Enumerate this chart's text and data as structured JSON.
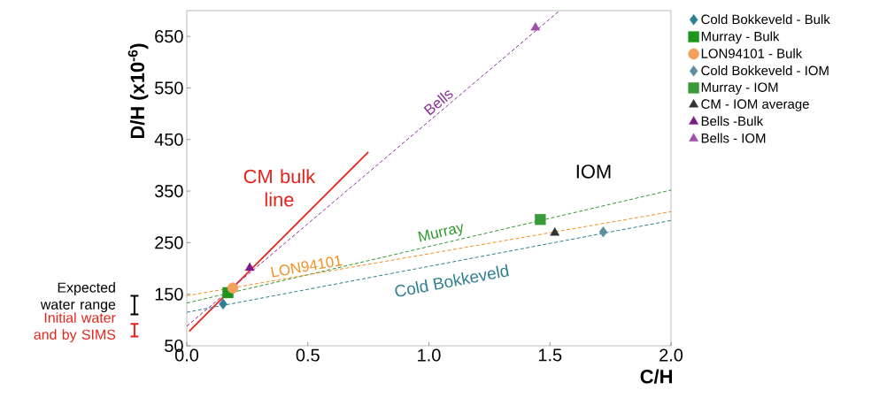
{
  "chart_data": {
    "type": "scatter",
    "xlabel": "C/H",
    "ylabel": "D/H (x10$^{-6}$)",
    "xlim": [
      0,
      2
    ],
    "ylim": [
      50,
      700
    ],
    "xticks": [
      {
        "value": 0,
        "label": "0.0"
      },
      {
        "value": 0.5,
        "label": "0.5"
      },
      {
        "value": 1,
        "label": "1.0"
      },
      {
        "value": 1.5,
        "label": "1.5"
      },
      {
        "value": 2,
        "label": "2.0"
      }
    ],
    "yticks": [
      50,
      150,
      250,
      350,
      450,
      550,
      650
    ],
    "grid": false,
    "legend": "right",
    "series": [
      {
        "name": "Cold Bokkeveld - Bulk",
        "color": "#2f7f95",
        "marker": "diamond",
        "x": [
          0.15
        ],
        "values": [
          131
        ]
      },
      {
        "name": "Murray - Bulk",
        "color": "#1e961e",
        "marker": "square",
        "x": [
          0.17
        ],
        "values": [
          153
        ]
      },
      {
        "name": "LON94101 - Bulk",
        "color": "#f2a05a",
        "marker": "circle",
        "x": [
          0.19
        ],
        "values": [
          162
        ]
      },
      {
        "name": "Cold Bokkeveld - IOM",
        "color": "#5e8fa0",
        "marker": "diamond",
        "x": [
          1.72
        ],
        "values": [
          271
        ]
      },
      {
        "name": "Murray - IOM",
        "color": "#3a9a3a",
        "marker": "square",
        "x": [
          1.46
        ],
        "values": [
          295
        ]
      },
      {
        "name": "CM - IOM average",
        "color": "#333333",
        "marker": "triangle",
        "x": [
          1.52
        ],
        "values": [
          269
        ]
      },
      {
        "name": "Bells -Bulk",
        "color": "#7b1b86",
        "marker": "triangle",
        "x": [
          0.26
        ],
        "values": [
          201
        ]
      },
      {
        "name": "Bells - IOM",
        "color": "#a050a8",
        "marker": "triangle",
        "x": [
          1.44
        ],
        "values": [
          667
        ]
      },
      {
        "name": "CM bulk line",
        "type": "line",
        "color": "#e8231b",
        "line_style": "solid",
        "x": [
          0.01,
          0.75
        ],
        "values": [
          78,
          426
        ]
      },
      {
        "name": "Bells",
        "type": "line",
        "color": "#8b2f9b",
        "line_style": "dashed",
        "x": [
          0,
          1.54
        ],
        "values": [
          88,
          700
        ]
      },
      {
        "name": "Murray",
        "type": "line",
        "color": "#2e9a2e",
        "line_style": "dashed",
        "x": [
          0,
          2
        ],
        "values": [
          133,
          352
        ]
      },
      {
        "name": "LON94101",
        "type": "line",
        "color": "#f39020",
        "line_style": "dashed",
        "x": [
          0,
          2
        ],
        "values": [
          147,
          310
        ]
      },
      {
        "name": "Cold Bokkeveld",
        "type": "line",
        "color": "#2f7f90",
        "line_style": "dashed",
        "x": [
          0,
          2
        ],
        "values": [
          115,
          293
        ]
      }
    ],
    "annotations": [
      "IOM",
      "Expected water range",
      "Initial water and by SIMS"
    ]
  }
}
